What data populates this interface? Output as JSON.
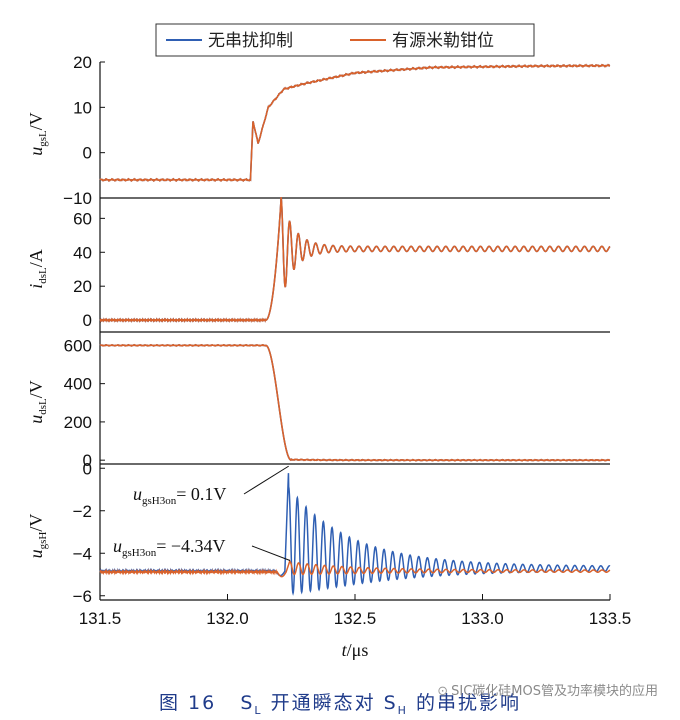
{
  "chart_data": {
    "type": "line",
    "legend": {
      "placement": "top-center",
      "entries": [
        {
          "name": "无串扰抑制",
          "color": "#2f5fb3"
        },
        {
          "name": "有源米勒钳位",
          "color": "#d9622b"
        }
      ]
    },
    "x": {
      "label": "t",
      "unit": "μs",
      "range": [
        131.5,
        133.5
      ],
      "ticks": [
        "131.5",
        "132.0",
        "132.5",
        "133.0",
        "133.5"
      ]
    },
    "panels": [
      {
        "name": "ugsL",
        "ylabel": {
          "var": "u",
          "sub": "gsL",
          "unit": "/V"
        },
        "range": [
          -10,
          20
        ],
        "ticks": [
          20,
          10,
          0,
          -10
        ],
        "tick_labels": [
          "20",
          "10",
          "0",
          "−10"
        ]
      },
      {
        "name": "idsL",
        "ylabel": {
          "var": "i",
          "sub": "dsL",
          "unit": "/A"
        },
        "range": [
          -7,
          72
        ],
        "ticks": [
          60,
          40,
          20,
          0
        ],
        "tick_labels": [
          "60",
          "40",
          "20",
          "0"
        ]
      },
      {
        "name": "udsL",
        "ylabel": {
          "var": "u",
          "sub": "dsL",
          "unit": "/V"
        },
        "range": [
          -20,
          670
        ],
        "ticks": [
          600,
          400,
          200,
          0
        ],
        "tick_labels": [
          "600",
          "400",
          "200",
          "0"
        ]
      },
      {
        "name": "ugsH",
        "ylabel": {
          "var": "u",
          "sub": "gsH",
          "unit": "/V"
        },
        "range": [
          -6.2,
          0.2
        ],
        "ticks": [
          0,
          -2,
          -4,
          -6
        ],
        "tick_labels": [
          "0",
          "−2",
          "−4",
          "−6"
        ]
      }
    ],
    "series": [
      {
        "name": "无串扰抑制",
        "color": "#2f5fb3",
        "ugsL_points": [
          [
            131.5,
            -6
          ],
          [
            132.09,
            -6
          ],
          [
            132.1,
            7
          ],
          [
            132.12,
            2
          ],
          [
            132.16,
            10
          ],
          [
            132.22,
            14
          ],
          [
            132.3,
            15.2
          ],
          [
            132.5,
            17.6
          ],
          [
            132.8,
            18.8
          ],
          [
            133.2,
            19.1
          ],
          [
            133.5,
            19.2
          ]
        ],
        "idsL": {
          "baseline": 0,
          "rise_start": 132.15,
          "peak_time": 132.21,
          "peak": 71,
          "final": 42,
          "oscillation_period_us": 0.034,
          "oscillation_amplitude_end": 1.5
        },
        "udsL": {
          "initial": 600,
          "fall_start": 132.15,
          "fall_end": 132.25,
          "final": 0
        },
        "ugsH": {
          "baseline": -4.84,
          "dip": -5.05,
          "peak_time": 132.24,
          "peak": 0.1,
          "settle": -4.72,
          "oscillation_period_us": 0.034,
          "oscillation_amplitude_end": 0.1
        }
      },
      {
        "name": "有源米勒钳位",
        "color": "#d9622b",
        "ugsL_points": [
          [
            131.5,
            -6
          ],
          [
            132.09,
            -6
          ],
          [
            132.1,
            7
          ],
          [
            132.12,
            2
          ],
          [
            132.16,
            10
          ],
          [
            132.22,
            14
          ],
          [
            132.3,
            15.2
          ],
          [
            132.5,
            17.6
          ],
          [
            132.8,
            18.8
          ],
          [
            133.2,
            19.1
          ],
          [
            133.5,
            19.2
          ]
        ],
        "idsL": {
          "baseline": 0,
          "rise_start": 132.15,
          "peak_time": 132.21,
          "peak": 71,
          "final": 42,
          "oscillation_period_us": 0.034,
          "oscillation_amplitude_end": 1.5
        },
        "udsL": {
          "initial": 600,
          "fall_start": 132.15,
          "fall_end": 132.25,
          "final": 0
        },
        "ugsH": {
          "baseline": -4.88,
          "dip": -5.1,
          "peak_time": 132.245,
          "peak": -4.34,
          "settle": -4.84,
          "oscillation_period_us": 0.034,
          "oscillation_amplitude_end": 0.05
        }
      }
    ],
    "annotations": [
      {
        "var": "u",
        "sub": "gsH3on",
        "text": "= 0.1V",
        "points_to": [
          132.24,
          0.1
        ]
      },
      {
        "var": "u",
        "sub": "gsH3on",
        "text": "= −4.34V",
        "points_to": [
          132.245,
          -4.34
        ]
      }
    ]
  },
  "caption": {
    "prefix": "图 16",
    "s1": "S",
    "s1_sub": "L",
    "middle": "开通瞬态对 S",
    "s2_sub": "H",
    "suffix": "的串扰影响"
  },
  "watermark": {
    "icon": "wechat-icon",
    "text": "SIC碳化硅MOS管及功率模块的应用"
  }
}
